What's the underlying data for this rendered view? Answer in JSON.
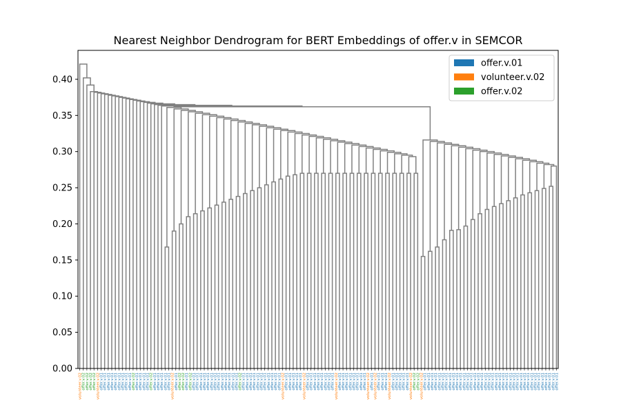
{
  "chart_data": {
    "type": "dendrogram",
    "title": "Nearest Neighbor Dendrogram for BERT Embeddings of offer.v in SEMCOR",
    "xlabel": "",
    "ylabel": "",
    "ylim": [
      0,
      0.44
    ],
    "y_ticks": [
      "0.00",
      "0.05",
      "0.10",
      "0.15",
      "0.20",
      "0.25",
      "0.30",
      "0.35",
      "0.40"
    ],
    "grid": false,
    "legend_position": "top-right",
    "legend": [
      {
        "label": "offer.v.01",
        "color": "#1f77b4"
      },
      {
        "label": "volunteer.v.02",
        "color": "#ff7f0e"
      },
      {
        "label": "offer.v.02",
        "color": "#2ca02c"
      }
    ],
    "link_color": "#808080",
    "leaf_senses": [
      "volunteer.v.02",
      "offer.v.02",
      "offer.v.02",
      "offer.v.02",
      "offer.v.02",
      "volunteer.v.02",
      "offer.v.01",
      "offer.v.01",
      "offer.v.01",
      "offer.v.01",
      "offer.v.01",
      "offer.v.01",
      "offer.v.01",
      "offer.v.01",
      "offer.v.01",
      "offer.v.02",
      "offer.v.01",
      "offer.v.01",
      "offer.v.01",
      "offer.v.01",
      "offer.v.02",
      "offer.v.01",
      "offer.v.01",
      "offer.v.01",
      "offer.v.01",
      "offer.v.01",
      "volunteer.v.02",
      "offer.v.01",
      "offer.v.02",
      "offer.v.02",
      "offer.v.01",
      "offer.v.02",
      "offer.v.01",
      "offer.v.01",
      "offer.v.01",
      "offer.v.01",
      "offer.v.01",
      "offer.v.01",
      "offer.v.01",
      "offer.v.01",
      "offer.v.01",
      "offer.v.01",
      "offer.v.01",
      "offer.v.01",
      "offer.v.01",
      "offer.v.02",
      "offer.v.01",
      "offer.v.01",
      "offer.v.01",
      "offer.v.01",
      "offer.v.01",
      "offer.v.01",
      "offer.v.01",
      "offer.v.01",
      "offer.v.01",
      "offer.v.01",
      "offer.v.01",
      "volunteer.v.02",
      "offer.v.01",
      "offer.v.01",
      "offer.v.01",
      "offer.v.01",
      "offer.v.01",
      "volunteer.v.02",
      "offer.v.01",
      "offer.v.01",
      "offer.v.01",
      "offer.v.01",
      "offer.v.01",
      "offer.v.01",
      "offer.v.01",
      "offer.v.01",
      "volunteer.v.02",
      "offer.v.01",
      "offer.v.01",
      "offer.v.01",
      "offer.v.01",
      "offer.v.01",
      "offer.v.01",
      "offer.v.01",
      "offer.v.01",
      "volunteer.v.02",
      "offer.v.01",
      "volunteer.v.02",
      "offer.v.01",
      "offer.v.01",
      "offer.v.01",
      "volunteer.v.02",
      "offer.v.01",
      "offer.v.01",
      "offer.v.01",
      "offer.v.01",
      "offer.v.01",
      "volunteer.v.02",
      "offer.v.02",
      "offer.v.02",
      "volunteer.v.02",
      "offer.v.01",
      "offer.v.01",
      "offer.v.01",
      "offer.v.01",
      "offer.v.01",
      "offer.v.01",
      "offer.v.01",
      "offer.v.01",
      "offer.v.01",
      "offer.v.01",
      "offer.v.01",
      "offer.v.01",
      "offer.v.01",
      "offer.v.01",
      "offer.v.01",
      "offer.v.01",
      "offer.v.01",
      "offer.v.01",
      "offer.v.01",
      "offer.v.01",
      "offer.v.01",
      "offer.v.01",
      "offer.v.01",
      "offer.v.01",
      "offer.v.01",
      "offer.v.01",
      "offer.v.01",
      "offer.v.01",
      "offer.v.01",
      "offer.v.01",
      "offer.v.01",
      "offer.v.01",
      "offer.v.01",
      "offer.v.01",
      "offer.v.01",
      "offer.v.01",
      "offer.v.01",
      "offer.v.01"
    ],
    "chain_merge_heights": [
      0.421,
      0.402,
      0.392,
      0.36,
      0.354,
      0.348,
      0.341,
      0.332,
      0.329,
      0.321,
      0.319,
      0.317,
      0.316,
      0.313,
      0.311,
      0.308,
      0.306,
      0.302,
      0.3,
      0.298,
      0.297,
      0.296,
      0.295,
      0.294
    ],
    "main_merge_height": 0.294,
    "left_group_heights": [
      0.285,
      0.284,
      0.283,
      0.292,
      0.293,
      0.291,
      0.287,
      0.285,
      0.284,
      0.282,
      0.281,
      0.281,
      0.28,
      0.279,
      0.278,
      0.276,
      0.275,
      0.274,
      0.272,
      0.27,
      0.268,
      0.266,
      0.262,
      0.258,
      0.254,
      0.25,
      0.246,
      0.242,
      0.238,
      0.234,
      0.23,
      0.226,
      0.222,
      0.218,
      0.214,
      0.21,
      0.2,
      0.19,
      0.168
    ],
    "right_group_heights": [
      0.28,
      0.276,
      0.274,
      0.268,
      0.262,
      0.256,
      0.252,
      0.249,
      0.246,
      0.243,
      0.24,
      0.236,
      0.232,
      0.228,
      0.224,
      0.22,
      0.214,
      0.206,
      0.197,
      0.192,
      0.191,
      0.178,
      0.168,
      0.162,
      0.155
    ]
  }
}
